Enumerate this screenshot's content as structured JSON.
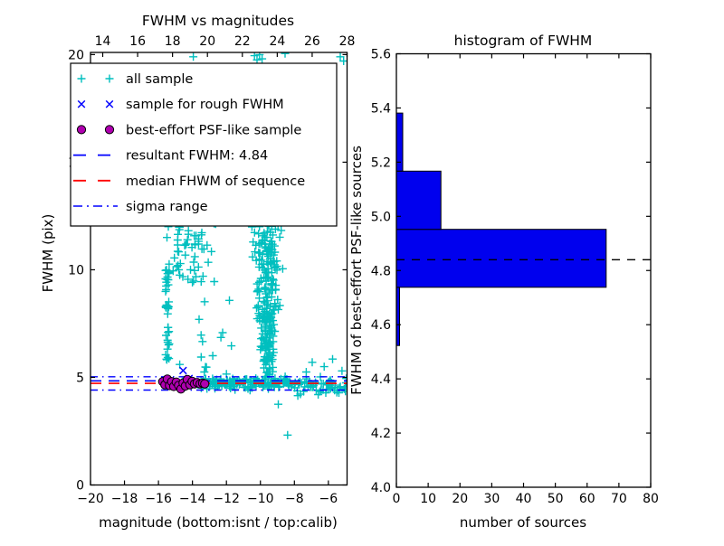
{
  "figure": {
    "background": "#ffffff"
  },
  "chart_data": [
    {
      "type": "scatter",
      "title": "FWHM vs magnitudes",
      "xlabel": "magnitude (bottom:isnt / top:calib)",
      "ylabel": "FWHM (pix)",
      "xlim_bottom": [
        -20,
        -4.9
      ],
      "xlim_top": [
        13.3,
        28.0
      ],
      "ylim": [
        0,
        20.1
      ],
      "xticks_bottom": [
        -20,
        -18,
        -16,
        -14,
        -12,
        -10,
        -8,
        -6
      ],
      "xticks_top": [
        14,
        16,
        18,
        20,
        22,
        24,
        26,
        28
      ],
      "yticks": [
        0,
        5,
        10,
        15,
        20
      ],
      "grid": false,
      "series": {
        "all_sample": {
          "label": "all sample",
          "marker": "plus",
          "color": "#00BFBF",
          "clusters": [
            {
              "shape": "vcolumn",
              "n": 40,
              "mag_center": -15.47,
              "mag_spread": 0.22,
              "fwhm_range": [
                5.75,
                10.4
              ]
            },
            {
              "shape": "box",
              "n": 52,
              "mag_range": [
                -15.15,
                -12.55
              ],
              "fwhm_range": [
                9.4,
                12.15
              ]
            },
            {
              "shape": "box",
              "n": 12,
              "mag_range": [
                -13.8,
                -11.4
              ],
              "fwhm_range": [
                5.4,
                9.2
              ]
            },
            {
              "shape": "plume",
              "n": 245,
              "mag_center": -9.55,
              "fwhm_range": [
                4.95,
                12.15
              ],
              "spread_range": [
                0.75,
                2.35
              ]
            },
            {
              "shape": "hband",
              "n": 150,
              "mag_range": [
                -13.6,
                -8.3
              ],
              "fwhm_center": 4.75,
              "fwhm_sd": 0.12
            },
            {
              "shape": "hband",
              "n": 58,
              "mag_range": [
                -8.3,
                -4.95
              ],
              "fwhm_center": 4.6,
              "fwhm_sd": 0.18
            }
          ],
          "extra_points": [
            [
              -13.95,
              19.9
            ],
            [
              -10.35,
              19.95
            ],
            [
              -10.2,
              19.75
            ],
            [
              -10.05,
              20.0
            ],
            [
              -9.9,
              19.8
            ],
            [
              -8.55,
              20.05
            ],
            [
              -5.3,
              19.9
            ],
            [
              -5.1,
              19.7
            ],
            [
              -6.95,
              5.7
            ],
            [
              -6.25,
              5.5
            ],
            [
              -5.75,
              5.85
            ],
            [
              -5.2,
              5.3
            ],
            [
              -7.3,
              5.25
            ],
            [
              -4.95,
              4.95
            ],
            [
              -6.0,
              4.45
            ],
            [
              -5.5,
              4.3
            ],
            [
              -6.6,
              4.2
            ],
            [
              -7.8,
              4.15
            ],
            [
              -8.4,
              2.32
            ],
            [
              -8.95,
              3.75
            ],
            [
              -15.5,
              11.5
            ],
            [
              -15.42,
              12.0
            ],
            [
              -14.6,
              4.8
            ],
            [
              -14.3,
              4.7
            ],
            [
              -13.9,
              4.75
            ],
            [
              -14.1,
              4.85
            ],
            [
              -14.75,
              5.6
            ],
            [
              -13.3,
              5.25
            ]
          ]
        },
        "rough_fwhm_sample": {
          "label": "sample for rough FWHM",
          "marker": "x",
          "color": "#0000FF",
          "points": [
            [
              -14.55,
              5.32
            ],
            [
              -14.2,
              4.95
            ],
            [
              -14.9,
              4.72
            ],
            [
              -14.35,
              4.8
            ]
          ]
        },
        "psf_like_sample": {
          "label": "best-effort PSF-like sample",
          "marker": "circle",
          "color": "#B000B0",
          "edge_color": "#000000",
          "points": [
            [
              -15.75,
              4.8
            ],
            [
              -15.62,
              4.66
            ],
            [
              -15.48,
              4.92
            ],
            [
              -15.35,
              4.62
            ],
            [
              -15.22,
              4.8
            ],
            [
              -15.1,
              4.58
            ],
            [
              -14.95,
              4.78
            ],
            [
              -14.82,
              4.63
            ],
            [
              -14.68,
              4.46
            ],
            [
              -14.55,
              4.74
            ],
            [
              -14.42,
              4.6
            ],
            [
              -14.3,
              4.9
            ],
            [
              -14.15,
              4.66
            ],
            [
              -14.02,
              4.82
            ],
            [
              -13.88,
              4.7
            ],
            [
              -13.72,
              4.76
            ],
            [
              -13.55,
              4.7
            ],
            [
              -13.4,
              4.73
            ],
            [
              -13.28,
              4.7
            ]
          ]
        }
      },
      "lines": [
        {
          "name": "resultant-fwhm-line",
          "value": 4.84,
          "color": "#0000FF",
          "style": "dashed"
        },
        {
          "name": "median-fwhm-line",
          "value": 4.72,
          "color": "#FF0000",
          "style": "dashed"
        },
        {
          "name": "sigma-upper-line",
          "value": 5.03,
          "color": "#0000FF",
          "style": "dashdot"
        },
        {
          "name": "sigma-lower-line",
          "value": 4.41,
          "color": "#0000FF",
          "style": "dashdot"
        }
      ],
      "legend_items": [
        {
          "label": "all sample",
          "marker": "plus",
          "color": "#00BFBF"
        },
        {
          "label": "sample for rough FWHM",
          "marker": "x",
          "color": "#0000FF"
        },
        {
          "label": "best-effort PSF-like sample",
          "marker": "circle",
          "color": "#B000B0"
        },
        {
          "label": "resultant FWHM: 4.84",
          "marker": "line-dashed",
          "color": "#0000FF"
        },
        {
          "label": "median FHWM of sequence",
          "marker": "line-dashed",
          "color": "#FF0000"
        },
        {
          "label": "sigma range",
          "marker": "line-dashdot",
          "color": "#0000FF"
        }
      ]
    },
    {
      "type": "bar",
      "orientation": "horizontal",
      "title": "histogram of FWHM",
      "xlabel": "number of sources",
      "ylabel": "FWHM of best-effort PSF-like sources",
      "xlim": [
        0,
        80
      ],
      "ylim": [
        4.0,
        5.6
      ],
      "xticks": [
        0,
        10,
        20,
        30,
        40,
        50,
        60,
        70,
        80
      ],
      "yticks": [
        4.0,
        4.2,
        4.4,
        4.6,
        4.8,
        5.0,
        5.2,
        5.4,
        5.6
      ],
      "grid": false,
      "bar_color": "#0000EE",
      "bar_edge_color": "#000000",
      "bins": {
        "edges": [
          4.523,
          4.738,
          4.952,
          5.167,
          5.381
        ],
        "counts": [
          1,
          66,
          14,
          2
        ]
      },
      "median_line": {
        "value": 4.84,
        "color": "#000000",
        "style": "dashed"
      }
    }
  ]
}
